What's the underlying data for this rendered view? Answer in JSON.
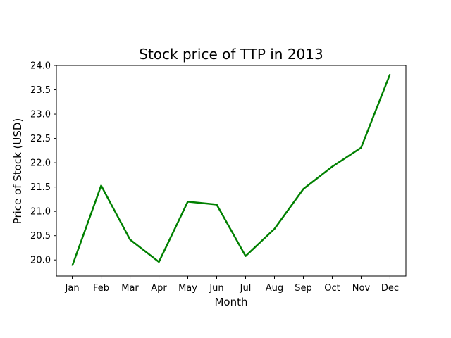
{
  "chart_data": {
    "type": "line",
    "title": "Stock price of TTP in 2013",
    "xlabel": "Month",
    "ylabel": "Price of Stock (USD)",
    "categories": [
      "Jan",
      "Feb",
      "Mar",
      "Apr",
      "May",
      "Jun",
      "Jul",
      "Aug",
      "Sep",
      "Oct",
      "Nov",
      "Dec"
    ],
    "series": [
      {
        "values": [
          19.88,
          21.53,
          20.42,
          19.96,
          21.2,
          21.14,
          20.08,
          20.64,
          21.46,
          21.92,
          22.31,
          23.82
        ],
        "color": "#008000"
      }
    ],
    "ylim": [
      19.67,
      24.0
    ],
    "yticks": [
      20.0,
      20.5,
      21.0,
      21.5,
      22.0,
      22.5,
      23.0,
      23.5,
      24.0
    ],
    "ytick_labels": [
      "20.0",
      "20.5",
      "21.0",
      "21.5",
      "22.0",
      "22.5",
      "23.0",
      "23.5",
      "24.0"
    ],
    "grid": false,
    "legend": "none"
  }
}
